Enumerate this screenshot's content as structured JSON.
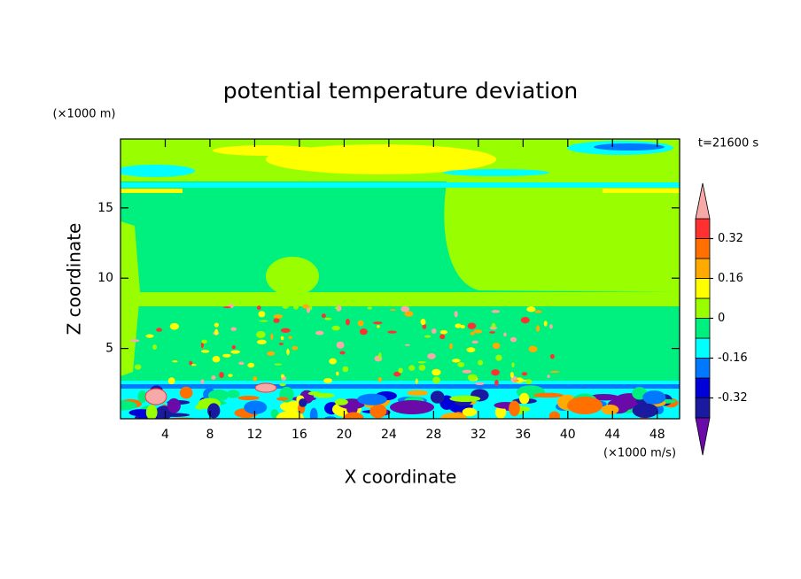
{
  "chart_data": {
    "type": "contour",
    "title": "potential temperature deviation",
    "x_label": "X coordinate",
    "y_label": "Z coordinate",
    "x_unit": "(×1000 m/s)",
    "y_unit": "(×1000 m)",
    "annotation": "t=21600 s",
    "xlim": [
      0,
      50
    ],
    "ylim": [
      0,
      19.9
    ],
    "xticks": [
      4,
      8,
      12,
      16,
      20,
      24,
      28,
      32,
      36,
      40,
      44,
      48
    ],
    "yticks": [
      5,
      10,
      15
    ],
    "colorbar": {
      "levels": [
        -0.4,
        -0.32,
        -0.24,
        -0.16,
        -0.08,
        0,
        0.08,
        0.16,
        0.24,
        0.32,
        0.4
      ],
      "colors": [
        "#6a0aa8",
        "#1a1aa0",
        "#0000d8",
        "#0078ff",
        "#00ffff",
        "#00f080",
        "#99ff00",
        "#ffff00",
        "#ffaa00",
        "#ff7000",
        "#ff3030",
        "#f7a9a8"
      ],
      "ticks": [
        -0.32,
        -0.16,
        0,
        0.16,
        0.32
      ]
    }
  }
}
